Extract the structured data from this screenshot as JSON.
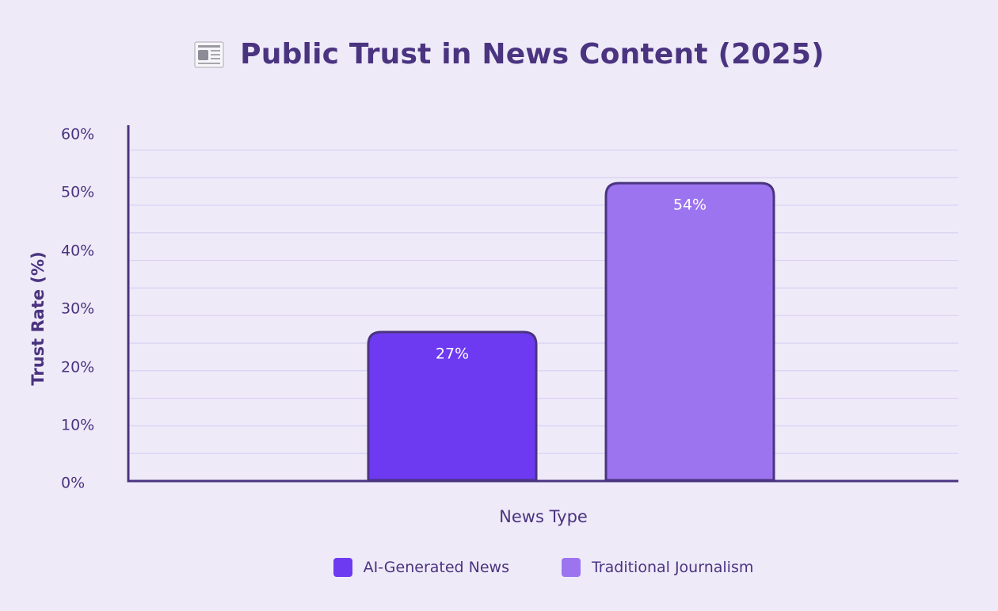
{
  "chart_data": {
    "type": "bar",
    "title": "Public Trust in News Content (2025)",
    "title_icon": "newspaper-icon",
    "xlabel": "News Type",
    "ylabel": "Trust Rate (%)",
    "ylim": [
      0,
      60
    ],
    "yticks": [
      "0%",
      "10%",
      "20%",
      "30%",
      "40%",
      "50%",
      "60%"
    ],
    "grid": true,
    "legend_position": "bottom",
    "categories": [
      "AI-Generated News",
      "Traditional Journalism"
    ],
    "values": [
      27,
      54
    ],
    "value_labels": [
      "27%",
      "54%"
    ],
    "colors": [
      "#6D3AF1",
      "#9C74EF"
    ],
    "axis_color": "#4A3480",
    "gridline_color": "#D8D0F4"
  }
}
